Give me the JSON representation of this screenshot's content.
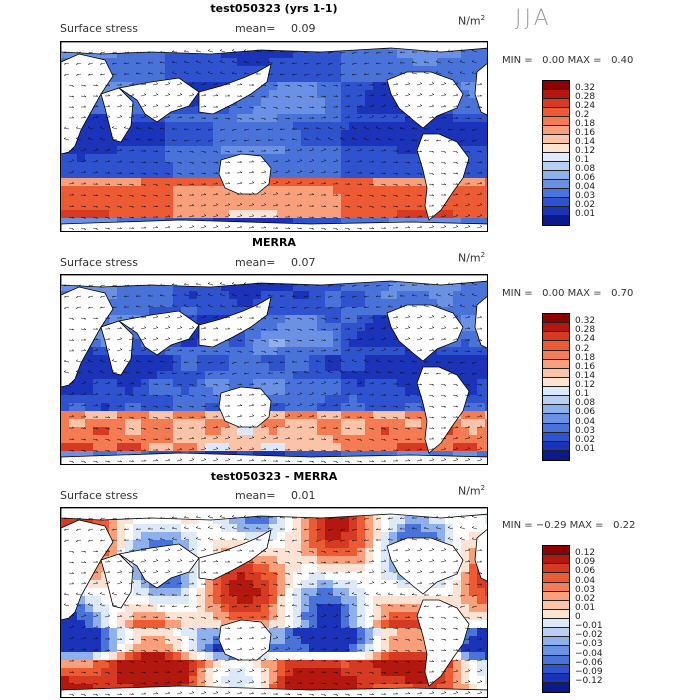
{
  "season": "JJA",
  "panels": [
    {
      "title": "test050323 (yrs 1-1)",
      "field_label": "Surface stress",
      "mean_label": "mean=",
      "mean_value": "0.09",
      "units": "N/m",
      "units_exp": "2",
      "min_label": "MIN =",
      "min_value": "0.00",
      "max_label": "MAX =",
      "max_value": "0.40",
      "colorbar": {
        "labels": [
          "0.32",
          "0.28",
          "0.24",
          "0.2",
          "0.18",
          "0.16",
          "0.14",
          "0.12",
          "0.1",
          "0.08",
          "0.06",
          "0.04",
          "0.03",
          "0.02",
          "0.01"
        ],
        "colors": [
          "#8b0000",
          "#b2180e",
          "#d73a22",
          "#ec5b34",
          "#f47b52",
          "#f8a07c",
          "#fbc3a7",
          "#fde3d3",
          "#dde8f8",
          "#b9cff2",
          "#8fb0ea",
          "#6a91e3",
          "#4a73da",
          "#2f52cf",
          "#1a33b8",
          "#0b1a8a"
        ]
      }
    },
    {
      "title": "MERRA",
      "field_label": "Surface stress",
      "mean_label": "mean=",
      "mean_value": "0.07",
      "units": "N/m",
      "units_exp": "2",
      "min_label": "MIN =",
      "min_value": "0.00",
      "max_label": "MAX =",
      "max_value": "0.70",
      "colorbar": {
        "labels": [
          "0.32",
          "0.28",
          "0.24",
          "0.2",
          "0.18",
          "0.16",
          "0.14",
          "0.12",
          "0.1",
          "0.08",
          "0.06",
          "0.04",
          "0.03",
          "0.02",
          "0.01"
        ],
        "colors": [
          "#8b0000",
          "#b2180e",
          "#d73a22",
          "#ec5b34",
          "#f47b52",
          "#f8a07c",
          "#fbc3a7",
          "#fde3d3",
          "#dde8f8",
          "#b9cff2",
          "#8fb0ea",
          "#6a91e3",
          "#4a73da",
          "#2f52cf",
          "#1a33b8",
          "#0b1a8a"
        ]
      }
    },
    {
      "title": "test050323 - MERRA",
      "field_label": "Surface stress",
      "mean_label": "mean=",
      "mean_value": "0.01",
      "units": "N/m",
      "units_exp": "2",
      "min_label": "MIN =",
      "min_value": "−0.29",
      "max_label": "MAX =",
      "max_value": "0.22",
      "colorbar": {
        "labels": [
          "0.12",
          "0.09",
          "0.06",
          "0.04",
          "0.03",
          "0.02",
          "0.01",
          "0",
          "−0.01",
          "−0.02",
          "−0.03",
          "−0.04",
          "−0.06",
          "−0.09",
          "−0.12"
        ],
        "colors": [
          "#8b0000",
          "#b2180e",
          "#d73a22",
          "#ec5b34",
          "#f47b52",
          "#f8a07c",
          "#fbc3a7",
          "#fde3d3",
          "#dde8f8",
          "#b9cff2",
          "#8fb0ea",
          "#6a91e3",
          "#4a73da",
          "#2f52cf",
          "#1a33b8",
          "#0b1a8a"
        ]
      }
    }
  ]
}
